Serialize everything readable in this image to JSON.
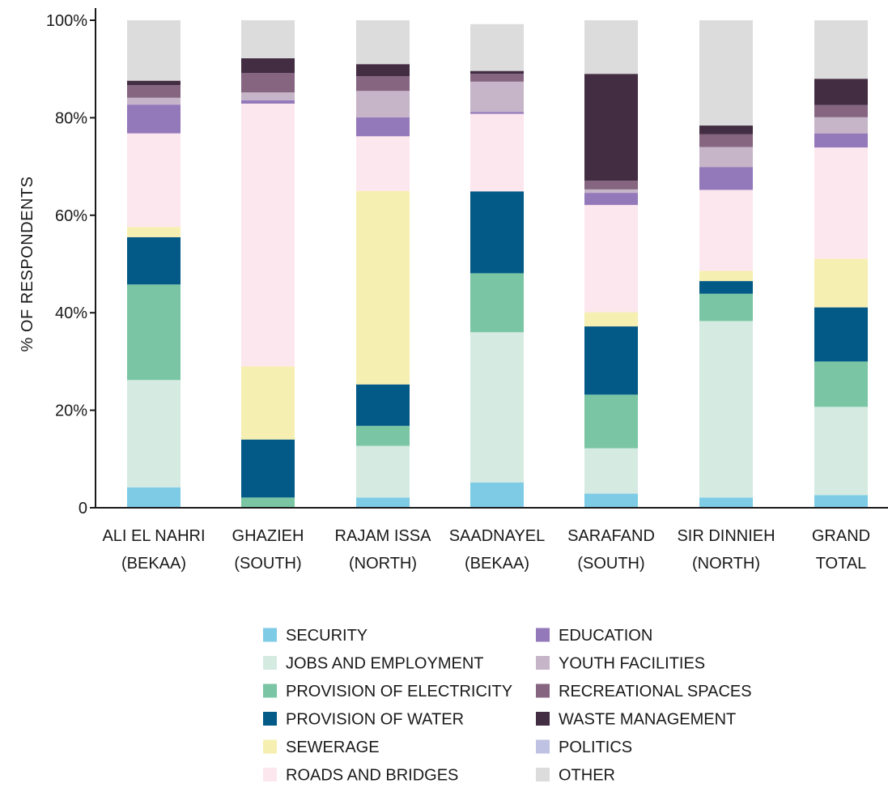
{
  "chart_data": {
    "type": "bar",
    "stacked": true,
    "ylabel": "% OF RESPONDENTS",
    "xlabel": "",
    "ylim": [
      0,
      100
    ],
    "yticks": [
      0,
      20,
      40,
      60,
      80,
      100
    ],
    "ytick_labels": [
      "0",
      "20%",
      "40%",
      "60%",
      "80%",
      "100%"
    ],
    "grid": false,
    "legend_position": "bottom",
    "categories": [
      [
        "ALI EL NAHRI",
        "(BEKAA)"
      ],
      [
        "GHAZIEH",
        "(SOUTH)"
      ],
      [
        "RAJAM ISSA",
        "(NORTH)"
      ],
      [
        "SAADNAYEL",
        "(BEKAA)"
      ],
      [
        "SARAFAND",
        "(SOUTH)"
      ],
      [
        "SIR DINNIEH",
        "(NORTH)"
      ],
      [
        "GRAND",
        "TOTAL"
      ]
    ],
    "series": [
      {
        "name": "SECURITY",
        "color": "#7ecbe6",
        "values": [
          4.2,
          0,
          2.1,
          5.2,
          2.9,
          2.1,
          2.6
        ]
      },
      {
        "name": "JOBS AND EMPLOYMENT",
        "color": "#d5ebe2",
        "values": [
          22,
          0,
          10.6,
          30.8,
          9.3,
          36.2,
          18.1
        ]
      },
      {
        "name": "PROVISION OF ELECTRICITY",
        "color": "#7ac5a4",
        "values": [
          19.6,
          2.1,
          4.1,
          12.1,
          11,
          5.6,
          9.3
        ]
      },
      {
        "name": "PROVISION OF WATER",
        "color": "#045a86",
        "values": [
          9.7,
          11.9,
          8.5,
          16.8,
          14,
          2.6,
          11.1
        ]
      },
      {
        "name": "SEWERAGE",
        "color": "#f6efb2",
        "values": [
          2.1,
          15,
          39.7,
          0,
          2.9,
          2.1,
          10
        ]
      },
      {
        "name": "ROADS AND BRIDGES",
        "color": "#fde7ee",
        "values": [
          19.2,
          53.9,
          11.2,
          15.9,
          22,
          16.6,
          22.8
        ]
      },
      {
        "name": "EDUCATION",
        "color": "#9379b9",
        "values": [
          5.9,
          0.7,
          3.9,
          0.4,
          2.5,
          4.7,
          2.9
        ]
      },
      {
        "name": "YOUTH FACILITIES",
        "color": "#c6b5c8",
        "values": [
          1.4,
          1.6,
          5.4,
          6.2,
          0.7,
          4.1,
          3.3
        ]
      },
      {
        "name": "RECREATIONAL SPACES",
        "color": "#856580",
        "values": [
          2.6,
          4,
          3,
          1.6,
          1.8,
          2.6,
          2.5
        ]
      },
      {
        "name": "WASTE MANAGEMENT",
        "color": "#432d43",
        "values": [
          0.9,
          3,
          2.5,
          0.6,
          21.9,
          1.8,
          5.4
        ]
      },
      {
        "name": "POLITICS",
        "color": "#bfc2e2",
        "values": [
          0,
          0,
          0,
          0,
          0,
          0,
          0
        ]
      },
      {
        "name": "OTHER",
        "color": "#dcdcdc",
        "values": [
          12.4,
          7.8,
          9,
          9.6,
          11,
          21.6,
          12
        ]
      }
    ],
    "legend_columns": [
      [
        "SECURITY",
        "JOBS AND EMPLOYMENT",
        "PROVISION OF ELECTRICITY",
        "PROVISION OF WATER",
        "SEWERAGE",
        "ROADS AND BRIDGES"
      ],
      [
        "EDUCATION",
        "YOUTH FACILITIES",
        "RECREATIONAL SPACES",
        "WASTE MANAGEMENT",
        "POLITICS",
        "OTHER"
      ]
    ]
  }
}
